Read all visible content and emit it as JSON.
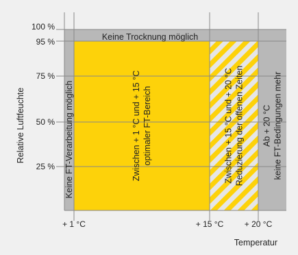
{
  "chart_data": {
    "type": "area",
    "xlabel": "Temperatur",
    "ylabel": "Relative Luftfeuchte",
    "x_ticks": [
      {
        "value": 1,
        "label": "+ 1 °C"
      },
      {
        "value": 15,
        "label": "+ 15 °C"
      },
      {
        "value": 20,
        "label": "+ 20 °C"
      }
    ],
    "y_ticks": [
      {
        "value": 25,
        "label": "25 %"
      },
      {
        "value": 50,
        "label": "50 %"
      },
      {
        "value": 75,
        "label": "75 %"
      },
      {
        "value": 95,
        "label": "95 %"
      },
      {
        "value": 100,
        "label": "100 %"
      }
    ],
    "xlim": [
      0,
      22
    ],
    "ylim": [
      0,
      100
    ],
    "grid": true,
    "regions": [
      {
        "id": "left-band",
        "x_range": [
          0,
          1
        ],
        "y_range": [
          0,
          95
        ],
        "fill": "gray",
        "label_lines": [
          "Keine FT-Verarbeitung möglich"
        ]
      },
      {
        "id": "top-band",
        "x_range": [
          0,
          22
        ],
        "y_range": [
          95,
          100
        ],
        "fill": "gray",
        "label_lines": [
          "Keine Trocknung möglich"
        ]
      },
      {
        "id": "optimal",
        "x_range": [
          1,
          15
        ],
        "y_range": [
          0,
          95
        ],
        "fill": "yellow",
        "label_lines": [
          "Zwischen + 1 °C und + 15 °C",
          "optimaler FT-Bereich"
        ]
      },
      {
        "id": "reduced",
        "x_range": [
          15,
          20
        ],
        "y_range": [
          0,
          95
        ],
        "fill": "hatched",
        "label_lines": [
          "Zwischen + 15 °C und + 20 °C",
          "Reduzierung der offenen Zeiten"
        ]
      },
      {
        "id": "right-band",
        "x_range": [
          20,
          22
        ],
        "y_range": [
          0,
          95
        ],
        "fill": "gray",
        "label_lines": [
          "Ab + 20 °C",
          "keine FT-Bedingungen mehr"
        ]
      }
    ],
    "colors": {
      "background": "#f0f0f0",
      "gray": "#b8b8b8",
      "yellow": "#fdd20a",
      "hatch_light": "#e6e6e6",
      "grid": "#888888"
    }
  }
}
